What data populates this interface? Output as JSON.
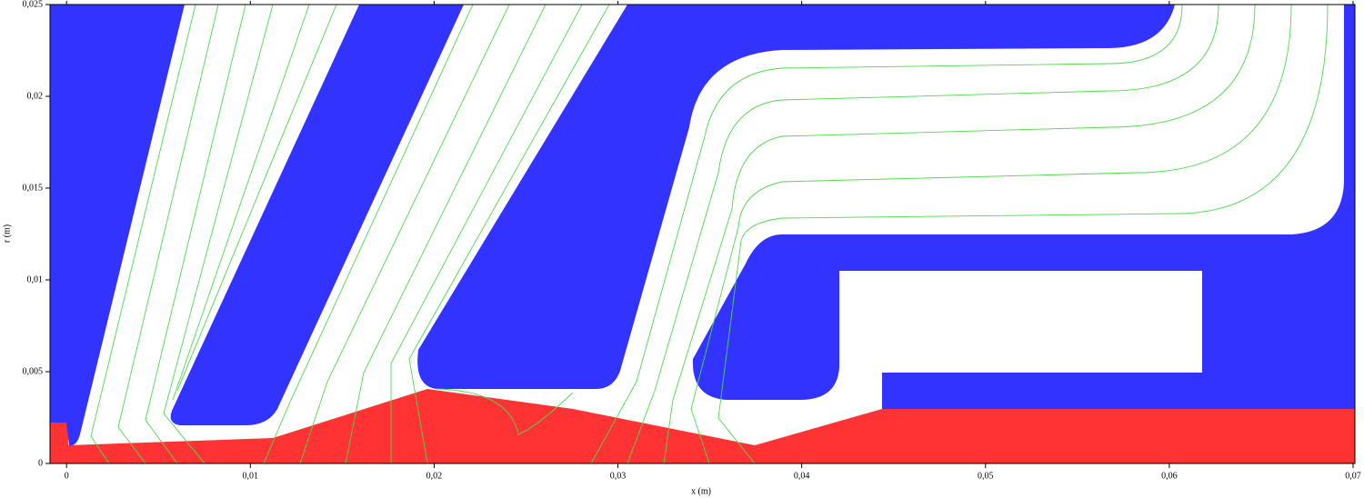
{
  "chart_data": {
    "type": "field",
    "x_label": "x (m)",
    "y_label": "r (m)",
    "xlim": [
      -0.0009,
      0.0701
    ],
    "ylim": [
      0,
      0.025
    ],
    "xticks": [
      0,
      {
        "value": 0.01,
        "label": "0,01"
      },
      {
        "value": 0.02,
        "label": "0,02"
      },
      {
        "value": 0.03,
        "label": "0,03"
      },
      {
        "value": 0.04,
        "label": "0,04"
      },
      {
        "value": 0.05,
        "label": "0,05"
      },
      {
        "value": 0.06,
        "label": "0,06"
      },
      {
        "value": 0.07,
        "label": "0,07"
      }
    ],
    "yticks": [
      0,
      {
        "value": 0.005,
        "label": "0,005"
      },
      {
        "value": 0.01,
        "label": "0,01"
      },
      {
        "value": 0.015,
        "label": "0,015"
      },
      {
        "value": 0.02,
        "label": "0,02"
      },
      {
        "value": 0.025,
        "label": "0,025"
      }
    ]
  }
}
